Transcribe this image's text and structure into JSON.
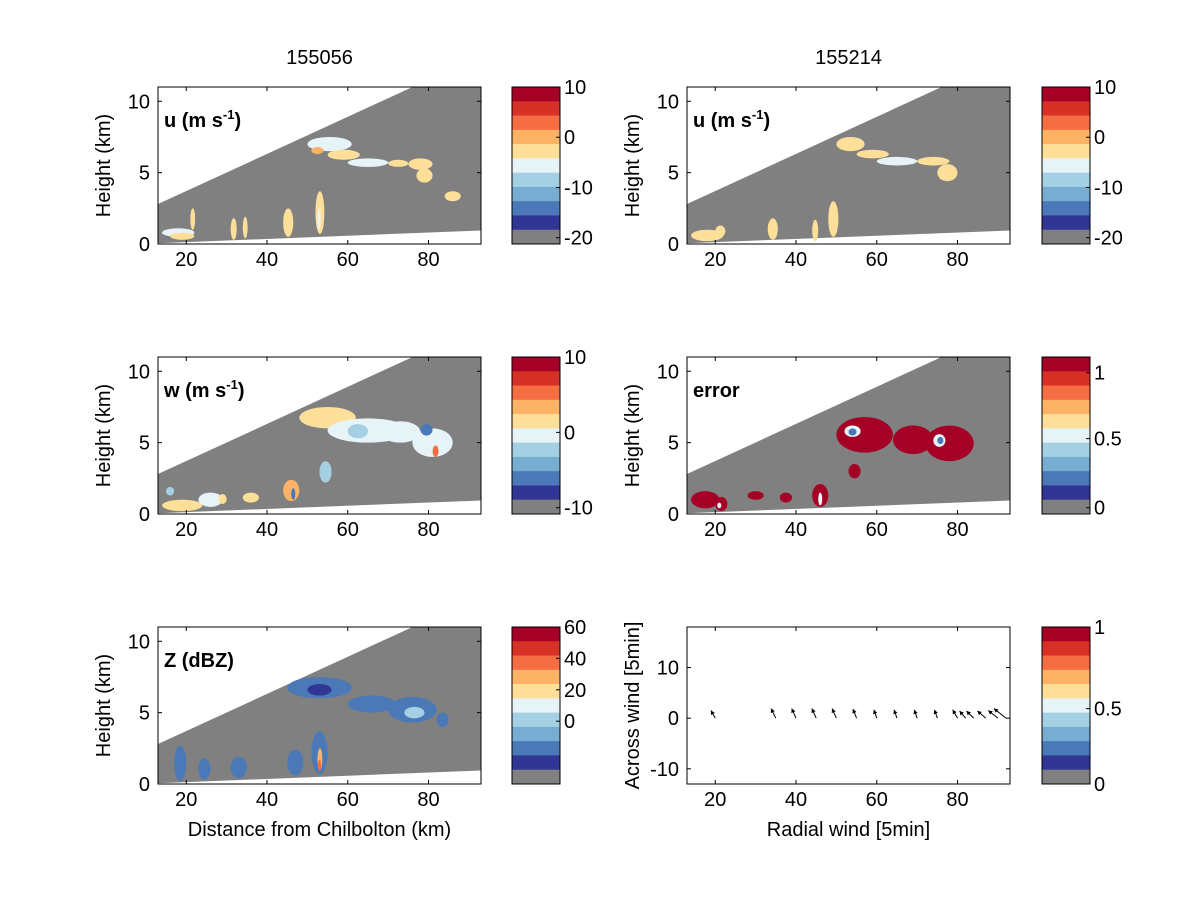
{
  "chart_data": [
    {
      "id": "u-left",
      "type": "heatmap",
      "title": "155056",
      "panel_label": "u (m s",
      "panel_label_sup": "-1",
      "panel_label_close": ")",
      "ylabel": "Height (km)",
      "xlabel": "",
      "xlim": [
        13,
        93
      ],
      "ylim": [
        0,
        11
      ],
      "x_ticks": [
        20,
        40,
        60,
        80
      ],
      "y_ticks": [
        0,
        5,
        10
      ],
      "colorbar": {
        "ticks": [
          10,
          0,
          -10,
          -20
        ]
      },
      "blobs": [
        {
          "x": 50,
          "y": 6.5,
          "w": 11,
          "h": 1.0,
          "color": "#e6f3f7"
        },
        {
          "x": 55,
          "y": 5.9,
          "w": 8,
          "h": 0.7,
          "color": "#fedf99"
        },
        {
          "x": 51,
          "y": 6.3,
          "w": 3,
          "h": 0.5,
          "color": "#fdb366"
        },
        {
          "x": 60,
          "y": 5.4,
          "w": 10,
          "h": 0.6,
          "color": "#e6f3f7"
        },
        {
          "x": 70,
          "y": 5.4,
          "w": 5,
          "h": 0.5,
          "color": "#fedf99"
        },
        {
          "x": 75,
          "y": 5.2,
          "w": 6,
          "h": 0.8,
          "color": "#fedf99"
        },
        {
          "x": 77,
          "y": 4.3,
          "w": 4,
          "h": 1.0,
          "color": "#fedf99"
        },
        {
          "x": 84,
          "y": 3.0,
          "w": 4,
          "h": 0.7,
          "color": "#fedf99"
        },
        {
          "x": 14,
          "y": 0.5,
          "w": 8,
          "h": 0.6,
          "color": "#e6f3f7"
        },
        {
          "x": 16,
          "y": 0.3,
          "w": 6,
          "h": 0.5,
          "color": "#fedf99"
        },
        {
          "x": 21,
          "y": 1.0,
          "w": 1.2,
          "h": 1.5,
          "color": "#fedf99"
        },
        {
          "x": 31,
          "y": 0.3,
          "w": 1.5,
          "h": 1.5,
          "color": "#fedf99"
        },
        {
          "x": 34,
          "y": 0.4,
          "w": 1.2,
          "h": 1.5,
          "color": "#fedf99"
        },
        {
          "x": 44,
          "y": 0.5,
          "w": 2.5,
          "h": 2.0,
          "color": "#fedf99"
        },
        {
          "x": 52,
          "y": 0.7,
          "w": 2.2,
          "h": 3.0,
          "color": "#fedf99"
        },
        {
          "x": 52.5,
          "y": 1.0,
          "w": 0.8,
          "h": 1.5,
          "color": "#e6f3f7"
        }
      ]
    },
    {
      "id": "u-right",
      "type": "heatmap",
      "title": "155214",
      "panel_label": "u (m s",
      "panel_label_sup": "-1",
      "panel_label_close": ")",
      "ylabel": "Height (km)",
      "xlabel": "",
      "xlim": [
        13,
        93
      ],
      "ylim": [
        0,
        11
      ],
      "x_ticks": [
        20,
        40,
        60,
        80
      ],
      "y_ticks": [
        0,
        5,
        10
      ],
      "colorbar": {
        "ticks": [
          10,
          0,
          -10,
          -20
        ]
      },
      "blobs": [
        {
          "x": 50,
          "y": 6.5,
          "w": 7,
          "h": 1.0,
          "color": "#fedf99"
        },
        {
          "x": 55,
          "y": 6.0,
          "w": 8,
          "h": 0.6,
          "color": "#fedf99"
        },
        {
          "x": 60,
          "y": 5.5,
          "w": 10,
          "h": 0.6,
          "color": "#e6f3f7"
        },
        {
          "x": 70,
          "y": 5.5,
          "w": 8,
          "h": 0.6,
          "color": "#fedf99"
        },
        {
          "x": 75,
          "y": 4.4,
          "w": 5,
          "h": 1.2,
          "color": "#fedf99"
        },
        {
          "x": 14,
          "y": 0.2,
          "w": 8,
          "h": 0.8,
          "color": "#fedf99"
        },
        {
          "x": 20,
          "y": 0.5,
          "w": 2.5,
          "h": 0.8,
          "color": "#fedf99"
        },
        {
          "x": 33,
          "y": 0.3,
          "w": 2.5,
          "h": 1.5,
          "color": "#fedf99"
        },
        {
          "x": 44,
          "y": 0.2,
          "w": 1.5,
          "h": 1.5,
          "color": "#fedf99"
        },
        {
          "x": 48,
          "y": 0.5,
          "w": 2.5,
          "h": 2.5,
          "color": "#fedf99"
        }
      ]
    },
    {
      "id": "w-left",
      "type": "heatmap",
      "title": "",
      "panel_label": "w (m s",
      "panel_label_sup": "-1",
      "panel_label_close": ")",
      "ylabel": "Height (km)",
      "xlabel": "",
      "xlim": [
        13,
        93
      ],
      "ylim": [
        0,
        11
      ],
      "x_ticks": [
        20,
        40,
        60,
        80
      ],
      "y_ticks": [
        0,
        5,
        10
      ],
      "colorbar": {
        "ticks": [
          10,
          0,
          -10
        ]
      },
      "blobs": [
        {
          "x": 48,
          "y": 6.0,
          "w": 14,
          "h": 1.5,
          "color": "#fedf99"
        },
        {
          "x": 55,
          "y": 5.0,
          "w": 20,
          "h": 1.7,
          "color": "#e6f3f7"
        },
        {
          "x": 60,
          "y": 5.3,
          "w": 5,
          "h": 1.0,
          "color": "#a5cfe3"
        },
        {
          "x": 68,
          "y": 5.0,
          "w": 10,
          "h": 1.5,
          "color": "#e6f3f7"
        },
        {
          "x": 76,
          "y": 4.0,
          "w": 10,
          "h": 2.0,
          "color": "#e6f3f7"
        },
        {
          "x": 78,
          "y": 5.5,
          "w": 3,
          "h": 0.8,
          "color": "#4b79b8"
        },
        {
          "x": 81,
          "y": 4.0,
          "w": 1.5,
          "h": 0.8,
          "color": "#f46d43"
        },
        {
          "x": 14,
          "y": 0.2,
          "w": 10,
          "h": 0.8,
          "color": "#fedf99"
        },
        {
          "x": 15,
          "y": 1.3,
          "w": 2,
          "h": 0.6,
          "color": "#a5cfe3"
        },
        {
          "x": 23,
          "y": 0.5,
          "w": 6,
          "h": 1.0,
          "color": "#e6f3f7"
        },
        {
          "x": 28,
          "y": 0.7,
          "w": 2,
          "h": 0.7,
          "color": "#fedf99"
        },
        {
          "x": 34,
          "y": 0.8,
          "w": 4,
          "h": 0.7,
          "color": "#fedf99"
        },
        {
          "x": 44,
          "y": 0.9,
          "w": 4,
          "h": 1.5,
          "color": "#fdb366"
        },
        {
          "x": 46,
          "y": 1.0,
          "w": 1,
          "h": 0.8,
          "color": "#4b79b8"
        },
        {
          "x": 53,
          "y": 2.2,
          "w": 3,
          "h": 1.5,
          "color": "#a5cfe3"
        }
      ]
    },
    {
      "id": "error-right",
      "type": "heatmap",
      "title": "",
      "panel_label": "error",
      "panel_label_sup": "",
      "panel_label_close": "",
      "ylabel": "Height (km)",
      "xlabel": "",
      "xlim": [
        13,
        93
      ],
      "ylim": [
        0,
        11
      ],
      "x_ticks": [
        20,
        40,
        60,
        80
      ],
      "y_ticks": [
        0,
        5,
        10
      ],
      "colorbar": {
        "ticks": [
          1,
          0.5,
          0
        ]
      },
      "blobs": [
        {
          "x": 50,
          "y": 4.3,
          "w": 14,
          "h": 2.5,
          "color": "#a50026"
        },
        {
          "x": 64,
          "y": 4.2,
          "w": 10,
          "h": 2.0,
          "color": "#a50026"
        },
        {
          "x": 72,
          "y": 3.7,
          "w": 12,
          "h": 2.5,
          "color": "#a50026"
        },
        {
          "x": 52,
          "y": 5.4,
          "w": 4,
          "h": 0.8,
          "color": "#e6f3f7"
        },
        {
          "x": 53,
          "y": 5.5,
          "w": 2,
          "h": 0.5,
          "color": "#4b79b8"
        },
        {
          "x": 74,
          "y": 4.7,
          "w": 3,
          "h": 0.9,
          "color": "#e6f3f7"
        },
        {
          "x": 75,
          "y": 4.9,
          "w": 1.5,
          "h": 0.5,
          "color": "#4b79b8"
        },
        {
          "x": 14,
          "y": 0.4,
          "w": 7,
          "h": 1.2,
          "color": "#a50026"
        },
        {
          "x": 20,
          "y": 0.2,
          "w": 3,
          "h": 1.0,
          "color": "#a50026"
        },
        {
          "x": 20.5,
          "y": 0.4,
          "w": 1,
          "h": 0.4,
          "color": "#e6f3f7"
        },
        {
          "x": 28,
          "y": 1.0,
          "w": 4,
          "h": 0.6,
          "color": "#a50026"
        },
        {
          "x": 36,
          "y": 0.8,
          "w": 3,
          "h": 0.7,
          "color": "#a50026"
        },
        {
          "x": 44,
          "y": 0.5,
          "w": 4,
          "h": 1.6,
          "color": "#a50026"
        },
        {
          "x": 45.5,
          "y": 0.6,
          "w": 1,
          "h": 0.9,
          "color": "#e6f3f7"
        },
        {
          "x": 53,
          "y": 2.5,
          "w": 3,
          "h": 1.0,
          "color": "#a50026"
        }
      ]
    },
    {
      "id": "z-left",
      "type": "heatmap",
      "title": "",
      "panel_label": "Z (dBZ)",
      "panel_label_sup": "",
      "panel_label_close": "",
      "ylabel": "Height (km)",
      "xlabel": "Distance from Chilbolton (km)",
      "xlim": [
        13,
        93
      ],
      "ylim": [
        0,
        11
      ],
      "x_ticks": [
        20,
        40,
        60,
        80
      ],
      "y_ticks": [
        0,
        5,
        10
      ],
      "colorbar": {
        "ticks": [
          60,
          40,
          20,
          0
        ]
      },
      "blobs": [
        {
          "x": 45,
          "y": 6.0,
          "w": 16,
          "h": 1.5,
          "color": "#4b79b8"
        },
        {
          "x": 60,
          "y": 5.0,
          "w": 12,
          "h": 1.2,
          "color": "#4b79b8"
        },
        {
          "x": 70,
          "y": 4.3,
          "w": 12,
          "h": 1.8,
          "color": "#4b79b8"
        },
        {
          "x": 50,
          "y": 6.2,
          "w": 6,
          "h": 0.8,
          "color": "#313695"
        },
        {
          "x": 74,
          "y": 4.6,
          "w": 5,
          "h": 0.8,
          "color": "#a5cfe3"
        },
        {
          "x": 82,
          "y": 4.0,
          "w": 3,
          "h": 1.0,
          "color": "#4b79b8"
        },
        {
          "x": 17,
          "y": 0.2,
          "w": 3,
          "h": 2.5,
          "color": "#4b79b8"
        },
        {
          "x": 23,
          "y": 0.3,
          "w": 3,
          "h": 1.5,
          "color": "#4b79b8"
        },
        {
          "x": 31,
          "y": 0.4,
          "w": 4,
          "h": 1.5,
          "color": "#4b79b8"
        },
        {
          "x": 45,
          "y": 0.6,
          "w": 4,
          "h": 1.8,
          "color": "#4b79b8"
        },
        {
          "x": 51,
          "y": 0.7,
          "w": 4,
          "h": 3.0,
          "color": "#4b79b8"
        },
        {
          "x": 52.5,
          "y": 1.0,
          "w": 1.2,
          "h": 1.5,
          "color": "#fdb366"
        },
        {
          "x": 52.6,
          "y": 0.9,
          "w": 0.8,
          "h": 0.8,
          "color": "#f46d43"
        }
      ]
    },
    {
      "id": "wind-right",
      "type": "scatter",
      "title": "",
      "panel_label": "",
      "xlabel": "Radial wind [5min]",
      "ylabel": "Across wind [5min]",
      "xlim": [
        13,
        93
      ],
      "ylim": [
        -13,
        18
      ],
      "x_ticks": [
        20,
        40,
        60,
        80
      ],
      "y_ticks": [
        -10,
        0,
        10
      ],
      "colorbar": {
        "ticks": [
          1,
          0.5,
          0
        ]
      },
      "arrows": [
        {
          "x": 20,
          "y": 0,
          "u": -1.8,
          "v": 3.2
        },
        {
          "x": 35,
          "y": 0,
          "u": -2.0,
          "v": 4.0
        },
        {
          "x": 40,
          "y": 0,
          "u": -1.8,
          "v": 4.0
        },
        {
          "x": 45,
          "y": 0,
          "u": -1.8,
          "v": 4.0
        },
        {
          "x": 50,
          "y": 0,
          "u": -1.8,
          "v": 4.0
        },
        {
          "x": 55,
          "y": 0,
          "u": -1.5,
          "v": 3.8
        },
        {
          "x": 60,
          "y": 0,
          "u": -1.2,
          "v": 3.5
        },
        {
          "x": 65,
          "y": 0,
          "u": -1.2,
          "v": 3.5
        },
        {
          "x": 70,
          "y": 0,
          "u": -1.2,
          "v": 3.5
        },
        {
          "x": 75,
          "y": 0,
          "u": -1.2,
          "v": 3.5
        },
        {
          "x": 80,
          "y": 0,
          "u": -2.0,
          "v": 3.5
        },
        {
          "x": 82,
          "y": 0,
          "u": -2.5,
          "v": 3.0
        },
        {
          "x": 84,
          "y": 0,
          "u": -3.0,
          "v": 3.0
        },
        {
          "x": 87,
          "y": 0,
          "u": -3.5,
          "v": 3.0
        },
        {
          "x": 90,
          "y": 0,
          "u": -4.0,
          "v": 3.2
        },
        {
          "x": 92,
          "y": 0,
          "u": -5.0,
          "v": 4.0
        }
      ]
    }
  ],
  "colors": {
    "background": "#ffffff",
    "masked": "#808080",
    "colormap": [
      "#a50026",
      "#d73027",
      "#f46d43",
      "#fdb366",
      "#fedf99",
      "#e6f3f7",
      "#a5cfe3",
      "#76add1",
      "#4b79b8",
      "#313695",
      "#808080"
    ]
  }
}
